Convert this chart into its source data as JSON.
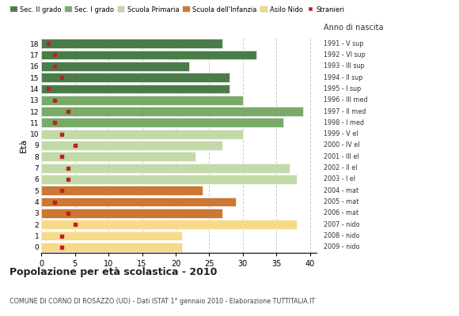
{
  "ages": [
    18,
    17,
    16,
    15,
    14,
    13,
    12,
    11,
    10,
    9,
    8,
    7,
    6,
    5,
    4,
    3,
    2,
    1,
    0
  ],
  "years": [
    "1991 - V sup",
    "1992 - VI sup",
    "1993 - III sup",
    "1994 - II sup",
    "1995 - I sup",
    "1996 - III med",
    "1997 - II med",
    "1998 - I med",
    "1999 - V el",
    "2000 - IV el",
    "2001 - III el",
    "2002 - II el",
    "2003 - I el",
    "2004 - mat",
    "2005 - mat",
    "2006 - mat",
    "2007 - nido",
    "2008 - nido",
    "2009 - nido"
  ],
  "bar_values": [
    27,
    32,
    22,
    28,
    28,
    30,
    39,
    36,
    30,
    27,
    23,
    37,
    38,
    24,
    29,
    27,
    38,
    21,
    21
  ],
  "stranieri": [
    1,
    2,
    2,
    3,
    1,
    2,
    4,
    2,
    3,
    5,
    3,
    4,
    4,
    3,
    2,
    4,
    5,
    3,
    3
  ],
  "bar_colors": [
    "#4a7c4a",
    "#4a7c4a",
    "#4a7c4a",
    "#4a7c4a",
    "#4a7c4a",
    "#7aaa6a",
    "#7aaa6a",
    "#7aaa6a",
    "#c2d9a8",
    "#c2d9a8",
    "#c2d9a8",
    "#c2d9a8",
    "#c2d9a8",
    "#cc7733",
    "#cc7733",
    "#cc7733",
    "#f7d98a",
    "#f7d98a",
    "#f7d98a"
  ],
  "legend_colors": [
    "#4a7c4a",
    "#7aaa6a",
    "#c2d9a8",
    "#cc7733",
    "#f7d98a"
  ],
  "legend_labels": [
    "Sec. II grado",
    "Sec. I grado",
    "Scuola Primaria",
    "Scuola dell'Infanzia",
    "Asilo Nido",
    "Stranieri"
  ],
  "stranieri_color": "#bb2222",
  "title": "Popolazione per età scolastica - 2010",
  "subtitle": "COMUNE DI CORNO DI ROSAZZO (UD) - Dati ISTAT 1° gennaio 2010 - Elaborazione TUTTITALIA.IT",
  "ylabel": "Età",
  "right_label": "Anno di nascita",
  "xlim": [
    0,
    41
  ],
  "xticks": [
    0,
    5,
    10,
    15,
    20,
    25,
    30,
    35,
    40
  ],
  "background_color": "#ffffff",
  "grid_color": "#cccccc"
}
